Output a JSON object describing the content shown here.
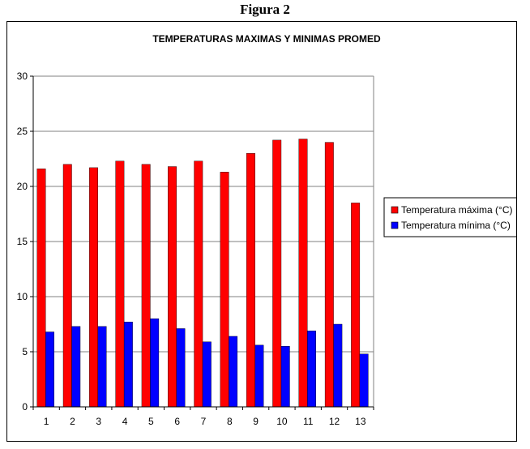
{
  "figure": {
    "caption": "Figura 2"
  },
  "chart_data": {
    "type": "bar",
    "title": "TEMPERATURAS MAXIMAS Y MINIMAS PROMED",
    "categories": [
      "1",
      "2",
      "3",
      "4",
      "5",
      "6",
      "7",
      "8",
      "9",
      "10",
      "11",
      "12",
      "13"
    ],
    "series": [
      {
        "name": "Temperatura máxima (°C)",
        "color": "#ff0000",
        "values": [
          21.6,
          22.0,
          21.7,
          22.3,
          22.0,
          21.8,
          22.3,
          21.3,
          23.0,
          24.2,
          24.3,
          24.0,
          18.5
        ]
      },
      {
        "name": "Temperatura mínima (°C)",
        "color": "#0000ff",
        "values": [
          6.8,
          7.3,
          7.3,
          7.7,
          8.0,
          7.1,
          5.9,
          6.4,
          5.6,
          5.5,
          6.9,
          7.5,
          4.8
        ]
      }
    ],
    "ylim": [
      0,
      30
    ],
    "yticks": [
      0,
      5,
      10,
      15,
      20,
      25,
      30
    ],
    "grid": true,
    "legend": "right"
  }
}
